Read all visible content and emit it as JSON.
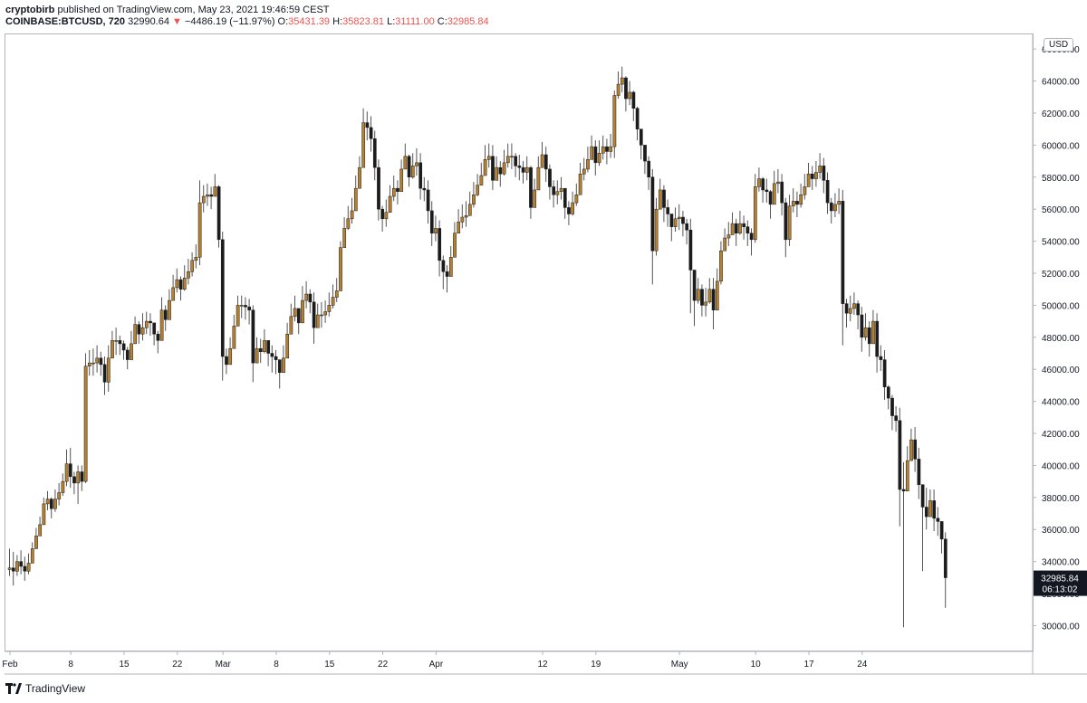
{
  "header": {
    "author": "cryptobirb",
    "published": "published on TradingView.com, May 23, 2021 19:46:59 CEST",
    "symbol": "COINBASE:BTCUSD, 720",
    "last": "32990.64",
    "change_arrow": "▼",
    "change": "−4486.19 (−11.97%)",
    "o_label": "O:",
    "o_value": "35431.39",
    "h_label": "H:",
    "h_value": "35823.81",
    "l_label": "L:",
    "l_value": "31111.00",
    "c_label": "C:",
    "c_value": "32985.84"
  },
  "currency_badge": "USD",
  "footer": {
    "brand": "TradingView"
  },
  "colors": {
    "up": "#b5802f",
    "down": "#1c1c1c",
    "wick": "#555555",
    "axis": "#b2b5be",
    "price_tag": "#131722"
  },
  "chart_data": {
    "type": "candlestick",
    "interval": "720",
    "y_ticks": [
      "30000.00",
      "32000.00",
      "34000.00",
      "36000.00",
      "38000.00",
      "40000.00",
      "42000.00",
      "44000.00",
      "46000.00",
      "48000.00",
      "50000.00",
      "52000.00",
      "54000.00",
      "56000.00",
      "58000.00",
      "60000.00",
      "62000.00",
      "64000.00",
      "66000.00"
    ],
    "ylim": [
      28500,
      66800
    ],
    "x_ticks": [
      "Feb",
      "8",
      "15",
      "22",
      "Mar",
      "8",
      "15",
      "22",
      "Apr",
      "12",
      "19",
      "May",
      "10",
      "17",
      "24"
    ],
    "current_price": "32985.84",
    "countdown": "06:13:02",
    "closes": [
      33600,
      33400,
      34000,
      33700,
      33400,
      33900,
      34800,
      35600,
      36300,
      37600,
      37900,
      37300,
      37900,
      38300,
      39000,
      40100,
      39300,
      38900,
      39600,
      39000,
      46200,
      46400,
      46400,
      46700,
      46300,
      45200,
      46700,
      47800,
      47800,
      47600,
      47200,
      46600,
      47600,
      48800,
      48200,
      48600,
      49000,
      48900,
      48200,
      47800,
      49700,
      49100,
      50300,
      51100,
      51600,
      51000,
      51700,
      52100,
      52800,
      53000,
      56400,
      56800,
      56900,
      56800,
      57400,
      54100,
      46800,
      46300,
      47300,
      48700,
      50000,
      50000,
      49900,
      49700,
      46400,
      47300,
      47100,
      47800,
      47000,
      46800,
      46600,
      45800,
      46700,
      48200,
      49300,
      49800,
      48900,
      50300,
      50700,
      50200,
      48600,
      49400,
      49400,
      49600,
      50000,
      50500,
      50900,
      53600,
      54800,
      55400,
      55900,
      57300,
      58600,
      61400,
      61100,
      60400,
      58600,
      56000,
      55400,
      55800,
      56800,
      57300,
      57100,
      58500,
      59300,
      58000,
      58700,
      58900,
      57300,
      57200,
      55900,
      54500,
      54800,
      52800,
      52100,
      51800,
      53000,
      54500,
      55200,
      55500,
      55600,
      56300,
      56900,
      57500,
      58100,
      59100,
      59300,
      57800,
      58600,
      58200,
      58900,
      59300,
      59300,
      58700,
      58600,
      58300,
      58600,
      56100,
      57200,
      58600,
      59400,
      58500,
      57400,
      56900,
      57100,
      57300,
      56100,
      55700,
      56400,
      56900,
      58200,
      58500,
      59100,
      59900,
      58900,
      59500,
      59900,
      59600,
      59900,
      63100,
      63800,
      64200,
      62900,
      63300,
      62300,
      61000,
      60000,
      59000,
      58000,
      53400,
      56000,
      57200,
      56100,
      55700,
      54900,
      55400,
      55500,
      55100,
      54700,
      52200,
      50300,
      51000,
      50000,
      50200,
      51000,
      49700,
      51500,
      53400,
      54200,
      54400,
      55100,
      54500,
      55100,
      54900,
      54500,
      54100,
      57400,
      57900,
      57200,
      57100,
      56300,
      57600,
      57700,
      56400,
      54100,
      56200,
      56500,
      56300,
      56900,
      57400,
      58200,
      57900,
      58300,
      58700,
      57800,
      56400,
      55900,
      56300,
      56500,
      50100,
      49500,
      49800,
      50100,
      49400,
      48000,
      48600,
      47600,
      49000,
      46800,
      46600,
      44900,
      44200,
      43100,
      42800,
      38500,
      38400,
      40300,
      41600,
      40400,
      38800,
      37400,
      36800,
      37800,
      36700,
      36500,
      35400,
      32990
    ],
    "start": 33500,
    "ranges": [
      [
        33100,
        34800
      ],
      [
        32500,
        34600
      ],
      [
        33100,
        34400
      ],
      [
        33200,
        34700
      ],
      [
        32800,
        34300
      ],
      [
        33200,
        34500
      ],
      [
        34100,
        35200
      ],
      [
        35000,
        36100
      ],
      [
        35600,
        36800
      ],
      [
        36700,
        38000
      ],
      [
        37200,
        38400
      ],
      [
        36700,
        38000
      ],
      [
        37100,
        38500
      ],
      [
        37500,
        38900
      ],
      [
        38100,
        39500
      ],
      [
        38700,
        41000
      ],
      [
        38600,
        41100
      ],
      [
        38200,
        39600
      ],
      [
        37600,
        40000
      ],
      [
        38400,
        40000
      ],
      [
        38900,
        47000
      ],
      [
        45600,
        47200
      ],
      [
        45600,
        47300
      ],
      [
        45800,
        47500
      ],
      [
        45600,
        47100
      ],
      [
        44400,
        46800
      ],
      [
        44600,
        47500
      ],
      [
        47000,
        48400
      ],
      [
        46900,
        48600
      ],
      [
        46900,
        48100
      ],
      [
        46600,
        47800
      ],
      [
        46000,
        47400
      ],
      [
        46800,
        48400
      ],
      [
        48000,
        49300
      ],
      [
        47600,
        49000
      ],
      [
        47800,
        49500
      ],
      [
        48200,
        49600
      ],
      [
        48100,
        49500
      ],
      [
        47500,
        48900
      ],
      [
        47000,
        48400
      ],
      [
        48800,
        50500
      ],
      [
        48400,
        50000
      ],
      [
        49500,
        51000
      ],
      [
        50500,
        51900
      ],
      [
        50800,
        52300
      ],
      [
        50300,
        51800
      ],
      [
        50900,
        52500
      ],
      [
        51300,
        52900
      ],
      [
        51800,
        53300
      ],
      [
        52300,
        53800
      ],
      [
        52500,
        57800
      ],
      [
        55800,
        57500
      ],
      [
        56200,
        57600
      ],
      [
        56000,
        57400
      ],
      [
        56800,
        58200
      ],
      [
        53600,
        57500
      ],
      [
        45300,
        54600
      ],
      [
        45700,
        47300
      ],
      [
        46600,
        48000
      ],
      [
        47800,
        49400
      ],
      [
        49200,
        50600
      ],
      [
        49200,
        50600
      ],
      [
        49100,
        50500
      ],
      [
        48800,
        50400
      ],
      [
        45200,
        50000
      ],
      [
        46600,
        48000
      ],
      [
        46400,
        47900
      ],
      [
        47000,
        48500
      ],
      [
        46200,
        47800
      ],
      [
        45800,
        47500
      ],
      [
        45700,
        47200
      ],
      [
        44800,
        46500
      ],
      [
        45900,
        47500
      ],
      [
        47400,
        48900
      ],
      [
        48400,
        50100
      ],
      [
        49000,
        50600
      ],
      [
        48200,
        49700
      ],
      [
        49400,
        51200
      ],
      [
        49800,
        51500
      ],
      [
        49500,
        51000
      ],
      [
        47600,
        50800
      ],
      [
        48700,
        50100
      ],
      [
        48600,
        50200
      ],
      [
        48900,
        50300
      ],
      [
        49300,
        50800
      ],
      [
        49800,
        51300
      ],
      [
        50200,
        51700
      ],
      [
        52200,
        54000
      ],
      [
        54100,
        55500
      ],
      [
        54700,
        56200
      ],
      [
        55100,
        56700
      ],
      [
        56400,
        58100
      ],
      [
        57700,
        59300
      ],
      [
        60200,
        62300
      ],
      [
        60300,
        62100
      ],
      [
        59600,
        61800
      ],
      [
        57800,
        60900
      ],
      [
        55300,
        59100
      ],
      [
        54600,
        56200
      ],
      [
        54900,
        56600
      ],
      [
        56100,
        57500
      ],
      [
        56500,
        58100
      ],
      [
        56300,
        57800
      ],
      [
        57600,
        59100
      ],
      [
        58500,
        60100
      ],
      [
        57400,
        59400
      ],
      [
        57900,
        59500
      ],
      [
        58100,
        59800
      ],
      [
        56600,
        59500
      ],
      [
        56500,
        58000
      ],
      [
        55100,
        57800
      ],
      [
        53700,
        56500
      ],
      [
        54000,
        55600
      ],
      [
        51800,
        55300
      ],
      [
        51000,
        53100
      ],
      [
        50800,
        52500
      ],
      [
        52400,
        53700
      ],
      [
        53800,
        55200
      ],
      [
        54600,
        56000
      ],
      [
        54800,
        56300
      ],
      [
        54900,
        56500
      ],
      [
        55600,
        57100
      ],
      [
        56100,
        57700
      ],
      [
        56800,
        58200
      ],
      [
        57500,
        58900
      ],
      [
        58400,
        60000
      ],
      [
        58600,
        60100
      ],
      [
        57200,
        60000
      ],
      [
        57800,
        59300
      ],
      [
        57400,
        59000
      ],
      [
        58100,
        59700
      ],
      [
        58600,
        60100
      ],
      [
        58500,
        60100
      ],
      [
        58000,
        59500
      ],
      [
        57800,
        59400
      ],
      [
        57600,
        59000
      ],
      [
        57800,
        59300
      ],
      [
        55400,
        58700
      ],
      [
        56400,
        57900
      ],
      [
        57800,
        59300
      ],
      [
        58600,
        60200
      ],
      [
        57700,
        59900
      ],
      [
        56600,
        58800
      ],
      [
        56100,
        57800
      ],
      [
        56300,
        57800
      ],
      [
        56600,
        58000
      ],
      [
        55400,
        57300
      ],
      [
        55000,
        56500
      ],
      [
        55600,
        57100
      ],
      [
        56200,
        57600
      ],
      [
        57400,
        58900
      ],
      [
        57800,
        59200
      ],
      [
        58300,
        59900
      ],
      [
        59100,
        60600
      ],
      [
        58100,
        60300
      ],
      [
        58700,
        60300
      ],
      [
        59100,
        60600
      ],
      [
        58800,
        60400
      ],
      [
        59200,
        60700
      ],
      [
        59200,
        63400
      ],
      [
        62900,
        64600
      ],
      [
        63300,
        64900
      ],
      [
        62100,
        64300
      ],
      [
        62500,
        64000
      ],
      [
        61500,
        63400
      ],
      [
        60300,
        62400
      ],
      [
        59100,
        60900
      ],
      [
        58200,
        59800
      ],
      [
        57200,
        59300
      ],
      [
        51300,
        58500
      ],
      [
        53100,
        56700
      ],
      [
        56400,
        57900
      ],
      [
        55200,
        57500
      ],
      [
        54900,
        56600
      ],
      [
        54000,
        55700
      ],
      [
        54600,
        56100
      ],
      [
        54700,
        56300
      ],
      [
        54300,
        55900
      ],
      [
        53800,
        55400
      ],
      [
        49500,
        55400
      ],
      [
        48700,
        51500
      ],
      [
        50100,
        51700
      ],
      [
        49300,
        51300
      ],
      [
        49300,
        51100
      ],
      [
        50100,
        51700
      ],
      [
        48500,
        51700
      ],
      [
        50700,
        52300
      ],
      [
        51300,
        54000
      ],
      [
        53400,
        54800
      ],
      [
        53700,
        55200
      ],
      [
        54400,
        55800
      ],
      [
        53700,
        55400
      ],
      [
        54400,
        55900
      ],
      [
        54100,
        55600
      ],
      [
        53700,
        55300
      ],
      [
        53100,
        54800
      ],
      [
        53900,
        58200
      ],
      [
        57100,
        58600
      ],
      [
        56400,
        58000
      ],
      [
        56400,
        57900
      ],
      [
        55400,
        57200
      ],
      [
        56700,
        58400
      ],
      [
        57000,
        58500
      ],
      [
        55600,
        58200
      ],
      [
        53000,
        56700
      ],
      [
        53700,
        56900
      ],
      [
        55800,
        57300
      ],
      [
        55500,
        57100
      ],
      [
        56100,
        57600
      ],
      [
        56600,
        58200
      ],
      [
        57400,
        58900
      ],
      [
        57200,
        58700
      ],
      [
        57400,
        59000
      ],
      [
        57900,
        59500
      ],
      [
        57000,
        59200
      ],
      [
        55700,
        58300
      ],
      [
        55100,
        56700
      ],
      [
        55500,
        57000
      ],
      [
        55700,
        57300
      ],
      [
        47500,
        57200
      ],
      [
        48600,
        50400
      ],
      [
        49000,
        50600
      ],
      [
        49400,
        50800
      ],
      [
        48500,
        50300
      ],
      [
        47100,
        49900
      ],
      [
        47800,
        49500
      ],
      [
        46800,
        49000
      ],
      [
        48300,
        49700
      ],
      [
        45800,
        49500
      ],
      [
        45900,
        47500
      ],
      [
        44100,
        47200
      ],
      [
        43500,
        45000
      ],
      [
        42200,
        44400
      ],
      [
        42100,
        43700
      ],
      [
        36200,
        43600
      ],
      [
        29900,
        40200
      ],
      [
        39600,
        41200
      ],
      [
        40800,
        42300
      ],
      [
        39600,
        42400
      ],
      [
        37900,
        41100
      ],
      [
        33400,
        38800
      ],
      [
        36000,
        38600
      ],
      [
        37100,
        38500
      ],
      [
        35900,
        38500
      ],
      [
        35600,
        37400
      ],
      [
        34500,
        36400
      ],
      [
        31111,
        35824
      ]
    ]
  }
}
